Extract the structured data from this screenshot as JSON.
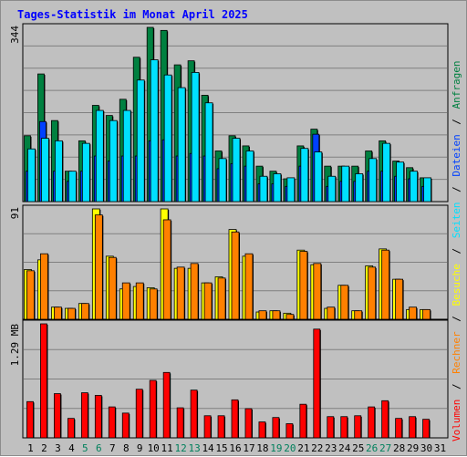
{
  "title": "Tages-Statistik im Monat April 2025",
  "colors": {
    "title": "#0000ff",
    "panel_bg": "#c0c0c0",
    "grid": "#808080",
    "hits": "#008040",
    "files": "#0040ff",
    "pages": "#00e0ff",
    "visits": "#ffff00",
    "sites": "#ff8000",
    "kbytes": "#ff0000",
    "weekend_label": "#00805c",
    "weekday_label": "#000000"
  },
  "legend": {
    "volumen": "Volumen",
    "rechner": "Rechner",
    "besuche": "Besuche",
    "seiten": "Seiten",
    "dateien": "Dateien",
    "anfragen": "Anfragen",
    "sep": "/"
  },
  "chart_data": [
    {
      "type": "bar",
      "name": "top",
      "ylabel": "344",
      "ylim": [
        0,
        344
      ],
      "categories": [
        "1",
        "2",
        "3",
        "4",
        "5",
        "6",
        "7",
        "8",
        "9",
        "10",
        "11",
        "12",
        "13",
        "14",
        "15",
        "16",
        "17",
        "18",
        "19",
        "20",
        "21",
        "22",
        "23",
        "24",
        "25",
        "26",
        "27",
        "28",
        "29",
        "30",
        "31"
      ],
      "weekend_days": [
        "5",
        "6",
        "12",
        "13",
        "19",
        "20",
        "26",
        "27"
      ],
      "series": [
        {
          "name": "Anfragen",
          "values": [
            130,
            252,
            160,
            60,
            120,
            190,
            170,
            202,
            285,
            344,
            338,
            270,
            278,
            210,
            100,
            130,
            110,
            70,
            60,
            45,
            110,
            143,
            70,
            70,
            70,
            100,
            120,
            80,
            67,
            47,
            0
          ]
        },
        {
          "name": "Dateien",
          "values": [
            60,
            158,
            60,
            40,
            60,
            90,
            80,
            90,
            90,
            120,
            122,
            90,
            95,
            90,
            65,
            75,
            70,
            35,
            35,
            30,
            70,
            133,
            30,
            40,
            40,
            60,
            60,
            50,
            45,
            30,
            0
          ]
        },
        {
          "name": "Seiten",
          "values": [
            104,
            125,
            120,
            60,
            115,
            180,
            160,
            180,
            240,
            280,
            250,
            225,
            255,
            195,
            85,
            125,
            100,
            50,
            55,
            47,
            105,
            98,
            50,
            70,
            55,
            85,
            115,
            78,
            60,
            47,
            0
          ]
        }
      ]
    },
    {
      "type": "bar",
      "name": "middle",
      "ylabel": "91",
      "ylim": [
        0,
        91
      ],
      "categories": [
        "1",
        "2",
        "3",
        "4",
        "5",
        "6",
        "7",
        "8",
        "9",
        "10",
        "11",
        "12",
        "13",
        "14",
        "15",
        "16",
        "17",
        "18",
        "19",
        "20",
        "21",
        "22",
        "23",
        "24",
        "25",
        "26",
        "27",
        "28",
        "29",
        "30",
        "31"
      ],
      "series": [
        {
          "name": "Besuche",
          "values": [
            41,
            49,
            10,
            9,
            13,
            91,
            52,
            25,
            27,
            26,
            91,
            42,
            42,
            30,
            35,
            74,
            52,
            6,
            7,
            5,
            57,
            45,
            9,
            28,
            7,
            44,
            58,
            33,
            8,
            8,
            0
          ]
        },
        {
          "name": "Rechner",
          "values": [
            40,
            54,
            10,
            9,
            13,
            86,
            51,
            30,
            30,
            25,
            82,
            43,
            46,
            30,
            34,
            72,
            54,
            7,
            7,
            4,
            56,
            46,
            10,
            28,
            7,
            43,
            57,
            33,
            10,
            8,
            0
          ]
        }
      ]
    },
    {
      "type": "bar",
      "name": "bottom",
      "ylabel": "1.29 MB",
      "ylim": [
        0,
        1.29
      ],
      "categories": [
        "1",
        "2",
        "3",
        "4",
        "5",
        "6",
        "7",
        "8",
        "9",
        "10",
        "11",
        "12",
        "13",
        "14",
        "15",
        "16",
        "17",
        "18",
        "19",
        "20",
        "21",
        "22",
        "23",
        "24",
        "25",
        "26",
        "27",
        "28",
        "29",
        "30",
        "31"
      ],
      "series": [
        {
          "name": "Volumen",
          "values": [
            0.41,
            1.29,
            0.5,
            0.22,
            0.51,
            0.48,
            0.35,
            0.28,
            0.55,
            0.65,
            0.74,
            0.34,
            0.54,
            0.25,
            0.25,
            0.43,
            0.33,
            0.18,
            0.23,
            0.16,
            0.38,
            1.23,
            0.24,
            0.24,
            0.25,
            0.35,
            0.42,
            0.22,
            0.24,
            0.21,
            0.0
          ]
        }
      ]
    }
  ]
}
